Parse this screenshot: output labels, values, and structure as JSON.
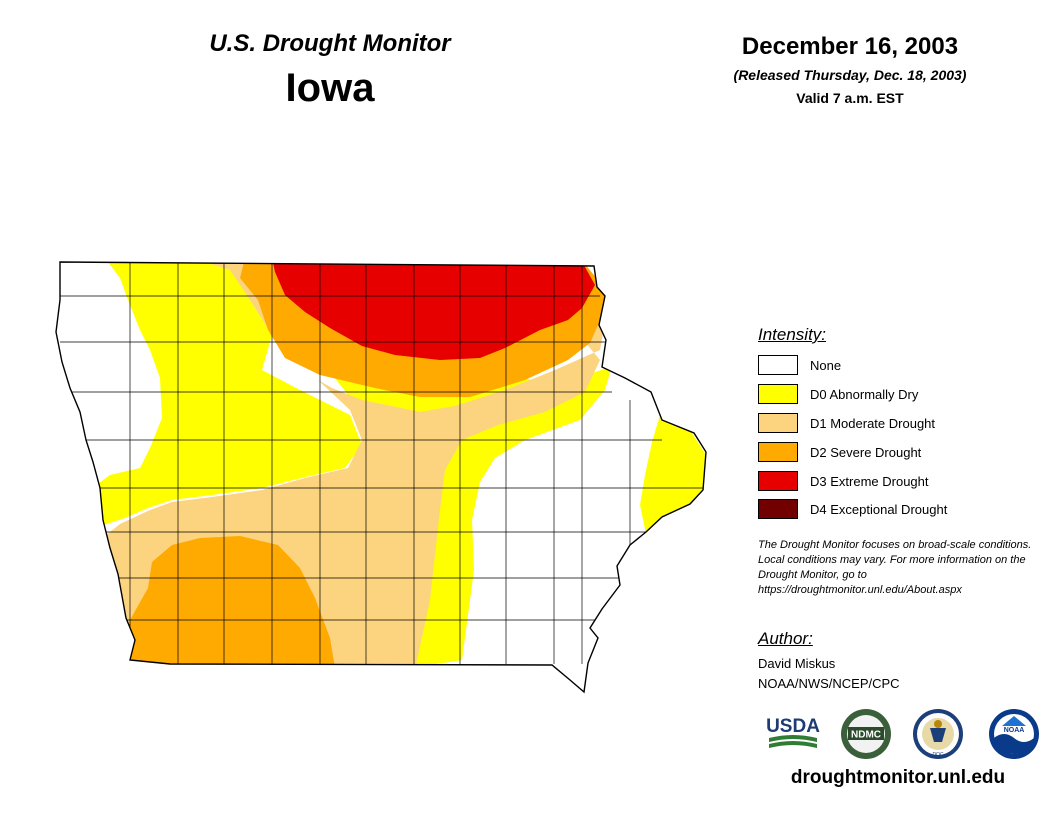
{
  "header": {
    "monitor_title": "U.S. Drought Monitor",
    "state": "Iowa",
    "date": "December 16, 2003",
    "released": "(Released Thursday, Dec. 18, 2003)",
    "valid": "Valid 7 a.m. EST"
  },
  "legend": {
    "title": "Intensity:",
    "items": [
      {
        "label": "None",
        "color": "#ffffff"
      },
      {
        "label": "D0 Abnormally Dry",
        "color": "#ffff00"
      },
      {
        "label": "D1 Moderate Drought",
        "color": "#fcd37f"
      },
      {
        "label": "D2 Severe Drought",
        "color": "#ffaa00"
      },
      {
        "label": "D3 Extreme Drought",
        "color": "#e60000"
      },
      {
        "label": "D4 Exceptional Drought",
        "color": "#730000"
      }
    ]
  },
  "disclaimer": "The Drought Monitor focuses on broad-scale conditions. Local conditions may vary. For more information on the Drought Monitor, go to https://droughtmonitor.unl.edu/About.aspx",
  "author": {
    "heading": "Author:",
    "name": "David Miskus",
    "org": "NOAA/NWS/NCEP/CPC"
  },
  "logos": [
    {
      "name": "usda-logo",
      "text": "USDA"
    },
    {
      "name": "ndmc-logo",
      "text": "NDMC"
    },
    {
      "name": "doc-logo",
      "text": "DOC"
    },
    {
      "name": "noaa-logo",
      "text": "NOAA"
    }
  ],
  "url": "droughtmonitor.unl.edu"
}
